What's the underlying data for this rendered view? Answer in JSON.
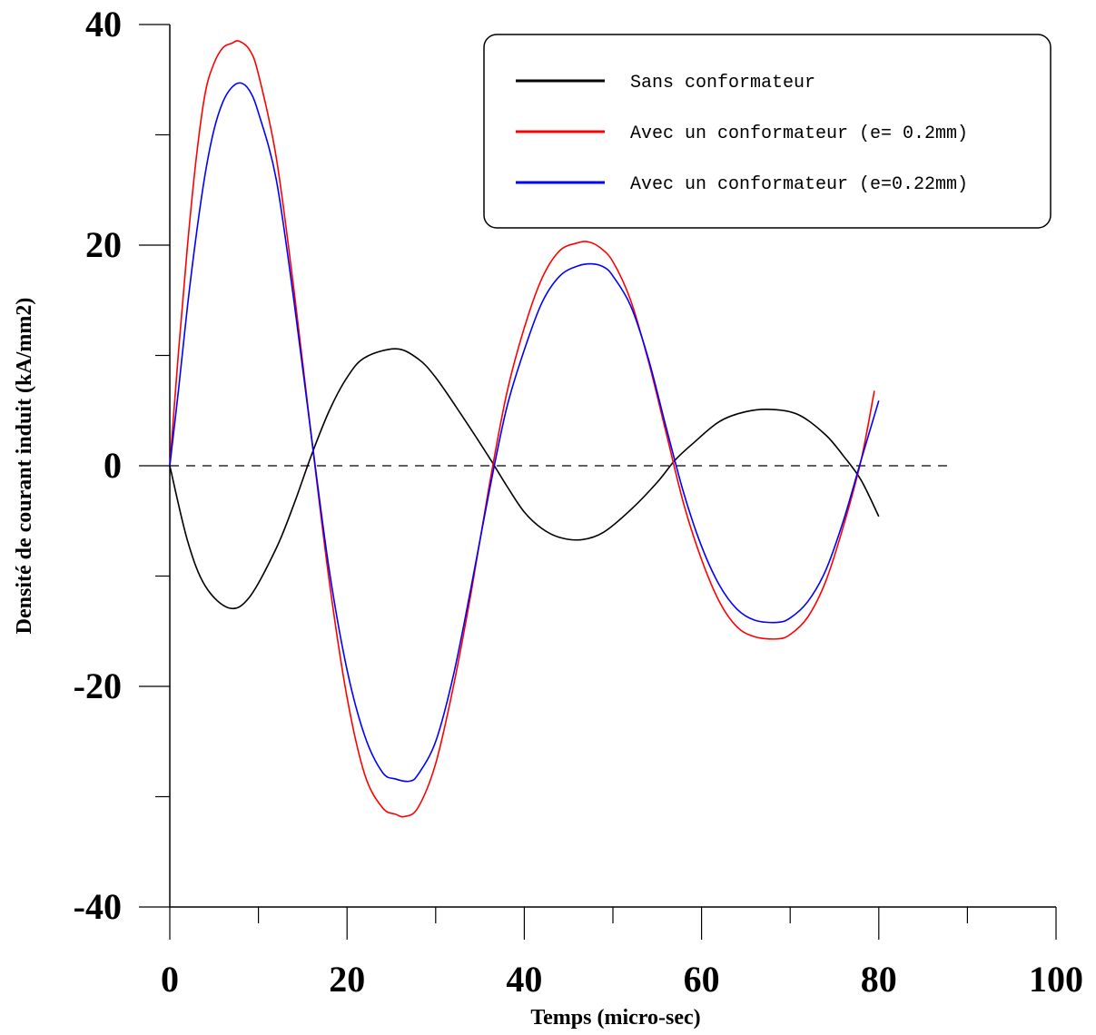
{
  "chart_data": {
    "type": "line",
    "title": "",
    "xlabel": "Temps (micro-sec)",
    "ylabel": "Densité de courant induit (kA/mm2)",
    "xlim": [
      0,
      100
    ],
    "ylim": [
      -40,
      40
    ],
    "x_major_ticks": [
      0,
      20,
      40,
      60,
      80,
      100
    ],
    "x_tick_labels": [
      "0",
      "20",
      "40",
      "60",
      "80",
      "100"
    ],
    "y_major_ticks": [
      -40,
      -20,
      0,
      20,
      40
    ],
    "y_tick_labels": [
      "-40",
      "-20",
      "0",
      "20",
      "40"
    ],
    "grid": false,
    "legend_position": "top-right",
    "reference_line": {
      "y": 0,
      "x_range": [
        0,
        88
      ],
      "style": "dashed"
    },
    "series": [
      {
        "name": "Sans conformateur",
        "color": "#000000",
        "x": [
          0,
          2,
          4,
          6.7,
          9,
          12,
          14,
          16,
          18,
          20,
          22,
          25.5,
          28,
          30,
          33,
          36,
          38,
          40,
          42,
          44,
          46.5,
          49,
          52,
          55,
          57,
          59,
          62,
          65,
          68,
          71,
          74,
          76,
          78,
          80
        ],
        "y": [
          0,
          -6.8,
          -10.9,
          -12.9,
          -11.9,
          -7.5,
          -3.5,
          1.0,
          5.0,
          8.0,
          9.8,
          10.6,
          9.7,
          8.0,
          4.5,
          0.8,
          -1.8,
          -4.2,
          -5.7,
          -6.5,
          -6.7,
          -6.0,
          -4.0,
          -1.5,
          0.5,
          2.0,
          4.0,
          4.9,
          5.1,
          4.6,
          2.8,
          0.9,
          -1.3,
          -4.6
        ]
      },
      {
        "name": "Avec un conformateur (e= 0.2mm)",
        "color": "#ff0000",
        "x": [
          0,
          1,
          2,
          3,
          4,
          5,
          6,
          7,
          7.8,
          9,
          10,
          12,
          14,
          16,
          18,
          20,
          22,
          24,
          25.5,
          26.5,
          28,
          30,
          32,
          34,
          36,
          38,
          40,
          42,
          44,
          46,
          47.2,
          48.5,
          50,
          52,
          54,
          56,
          58,
          60,
          62,
          64,
          66,
          68.5,
          70,
          72,
          74,
          76,
          78,
          79.5
        ],
        "y": [
          0,
          10.5,
          20,
          28,
          33.8,
          36.5,
          37.9,
          38.3,
          38.5,
          37.7,
          35.5,
          28,
          16,
          2.5,
          -10.5,
          -21,
          -28,
          -31,
          -31.6,
          -31.8,
          -31,
          -27,
          -20,
          -11.5,
          -2,
          6.5,
          12.5,
          17,
          19.5,
          20.2,
          20.3,
          19.8,
          18.5,
          15,
          9.5,
          3,
          -3.5,
          -8.5,
          -12.3,
          -14.6,
          -15.5,
          -15.7,
          -15.3,
          -13.7,
          -10.5,
          -5.5,
          0.5,
          6.8
        ]
      },
      {
        "name": "Avec un conformateur (e=0.22mm)",
        "color": "#0000ff",
        "x": [
          0,
          1,
          2,
          3,
          4,
          5,
          6,
          7,
          8,
          9,
          10,
          12,
          14,
          16,
          18,
          20,
          22,
          24,
          25.5,
          27,
          28,
          30,
          32,
          34,
          36,
          38,
          40,
          42,
          44,
          46,
          47.7,
          49,
          50,
          52,
          54,
          56,
          58,
          60,
          62,
          64,
          66,
          68.5,
          70,
          72,
          74,
          76,
          78,
          80
        ],
        "y": [
          0,
          7,
          14.5,
          21,
          26.5,
          30.5,
          33,
          34.3,
          34.7,
          34,
          32,
          26,
          15,
          2.5,
          -9.5,
          -18.5,
          -24.5,
          -27.8,
          -28.4,
          -28.6,
          -28,
          -25,
          -19,
          -11,
          -2.5,
          5.2,
          10.5,
          14.8,
          17.2,
          18.1,
          18.3,
          18.0,
          17.2,
          14.5,
          9.7,
          3.5,
          -2.5,
          -7.3,
          -10.8,
          -13,
          -14,
          -14.2,
          -13.8,
          -12.3,
          -9.5,
          -5,
          0.5,
          5.9
        ]
      }
    ]
  }
}
